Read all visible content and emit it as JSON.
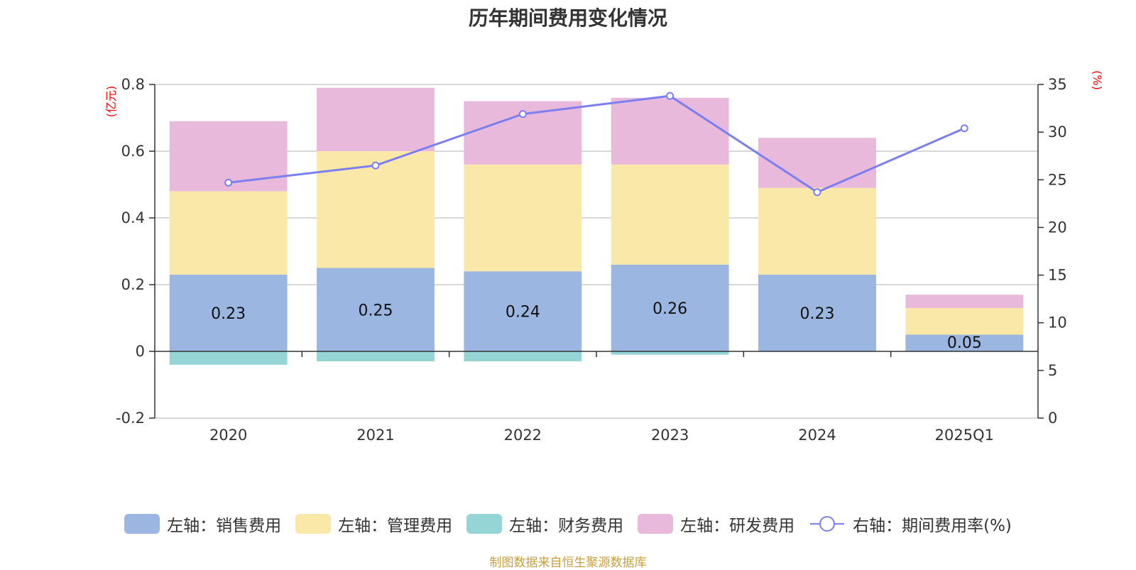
{
  "chart_data": {
    "type": "bar",
    "stacked": true,
    "title": "历年期间费用变化情况",
    "categories": [
      "2020",
      "2021",
      "2022",
      "2023",
      "2024",
      "2025Q1"
    ],
    "left_axis": {
      "unit": "(亿元)",
      "ylim": [
        -0.2,
        0.8
      ],
      "ticks": [
        -0.2,
        0,
        0.2,
        0.4,
        0.6,
        0.8
      ],
      "tick_labels": [
        "-0.2",
        "0",
        "0.2",
        "0.4",
        "0.6",
        "0.8"
      ]
    },
    "right_axis": {
      "unit": "(%)",
      "ylim": [
        0,
        35
      ],
      "ticks": [
        0,
        5,
        10,
        15,
        20,
        25,
        30,
        35
      ],
      "tick_labels": [
        "0",
        "5",
        "10",
        "15",
        "20",
        "25",
        "30",
        "35"
      ]
    },
    "series": [
      {
        "name": "左轴：销售费用",
        "axis": "left",
        "color": "#9bb6e0",
        "values": [
          0.23,
          0.25,
          0.24,
          0.26,
          0.23,
          0.05
        ],
        "data_labels": [
          "0.23",
          "0.25",
          "0.24",
          "0.26",
          "0.23",
          "0.05"
        ]
      },
      {
        "name": "左轴：管理费用",
        "axis": "left",
        "color": "#f9e8a8",
        "values": [
          0.25,
          0.35,
          0.32,
          0.3,
          0.26,
          0.08
        ]
      },
      {
        "name": "左轴：财务费用",
        "axis": "left",
        "color": "#96d5d5",
        "values": [
          -0.04,
          -0.03,
          -0.03,
          -0.01,
          0,
          0
        ]
      },
      {
        "name": "左轴：研发费用",
        "axis": "left",
        "color": "#e8b9da",
        "values": [
          0.21,
          0.19,
          0.19,
          0.2,
          0.15,
          0.04
        ]
      },
      {
        "name": "右轴：期间费用率(%)",
        "axis": "right",
        "type": "line",
        "color": "#7b7ff0",
        "values": [
          24.7,
          26.5,
          31.9,
          33.8,
          23.7,
          30.4
        ]
      }
    ],
    "grid": true,
    "legend_position": "bottom"
  },
  "source_note": "制图数据来自恒生聚源数据库"
}
